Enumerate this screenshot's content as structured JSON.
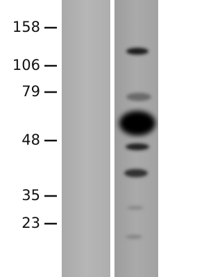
{
  "markers": [
    158,
    106,
    79,
    48,
    35,
    23
  ]
}
